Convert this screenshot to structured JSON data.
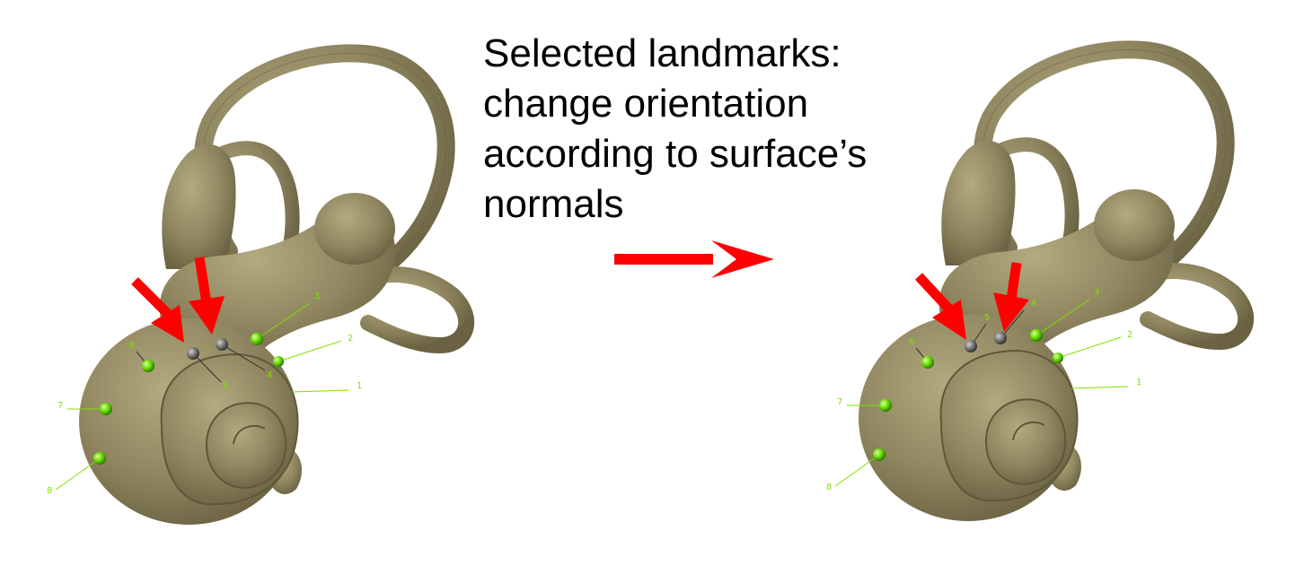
{
  "caption": {
    "lines": [
      "Selected landmarks:",
      "change orientation",
      "according to surface’s",
      "normals"
    ]
  },
  "colors": {
    "bone": "#8f8660",
    "bone_dark": "#5f5838",
    "landmark_fixed": "#66dd00",
    "landmark_selected": "#777777",
    "arrow": "#ff0000",
    "label": "#7fe000"
  },
  "panels": {
    "before": {
      "landmarks": [
        {
          "id": "1",
          "kind": "fixed"
        },
        {
          "id": "2",
          "kind": "fixed"
        },
        {
          "id": "3",
          "kind": "fixed"
        },
        {
          "id": "4",
          "kind": "selected"
        },
        {
          "id": "5",
          "kind": "selected"
        },
        {
          "id": "6",
          "kind": "fixed"
        },
        {
          "id": "7",
          "kind": "fixed"
        },
        {
          "id": "8",
          "kind": "fixed"
        }
      ]
    },
    "after": {
      "landmarks": [
        {
          "id": "1",
          "kind": "fixed"
        },
        {
          "id": "2",
          "kind": "fixed"
        },
        {
          "id": "3",
          "kind": "fixed"
        },
        {
          "id": "4",
          "kind": "selected"
        },
        {
          "id": "5",
          "kind": "selected"
        },
        {
          "id": "6",
          "kind": "fixed"
        },
        {
          "id": "7",
          "kind": "fixed"
        },
        {
          "id": "8",
          "kind": "fixed"
        }
      ]
    }
  }
}
